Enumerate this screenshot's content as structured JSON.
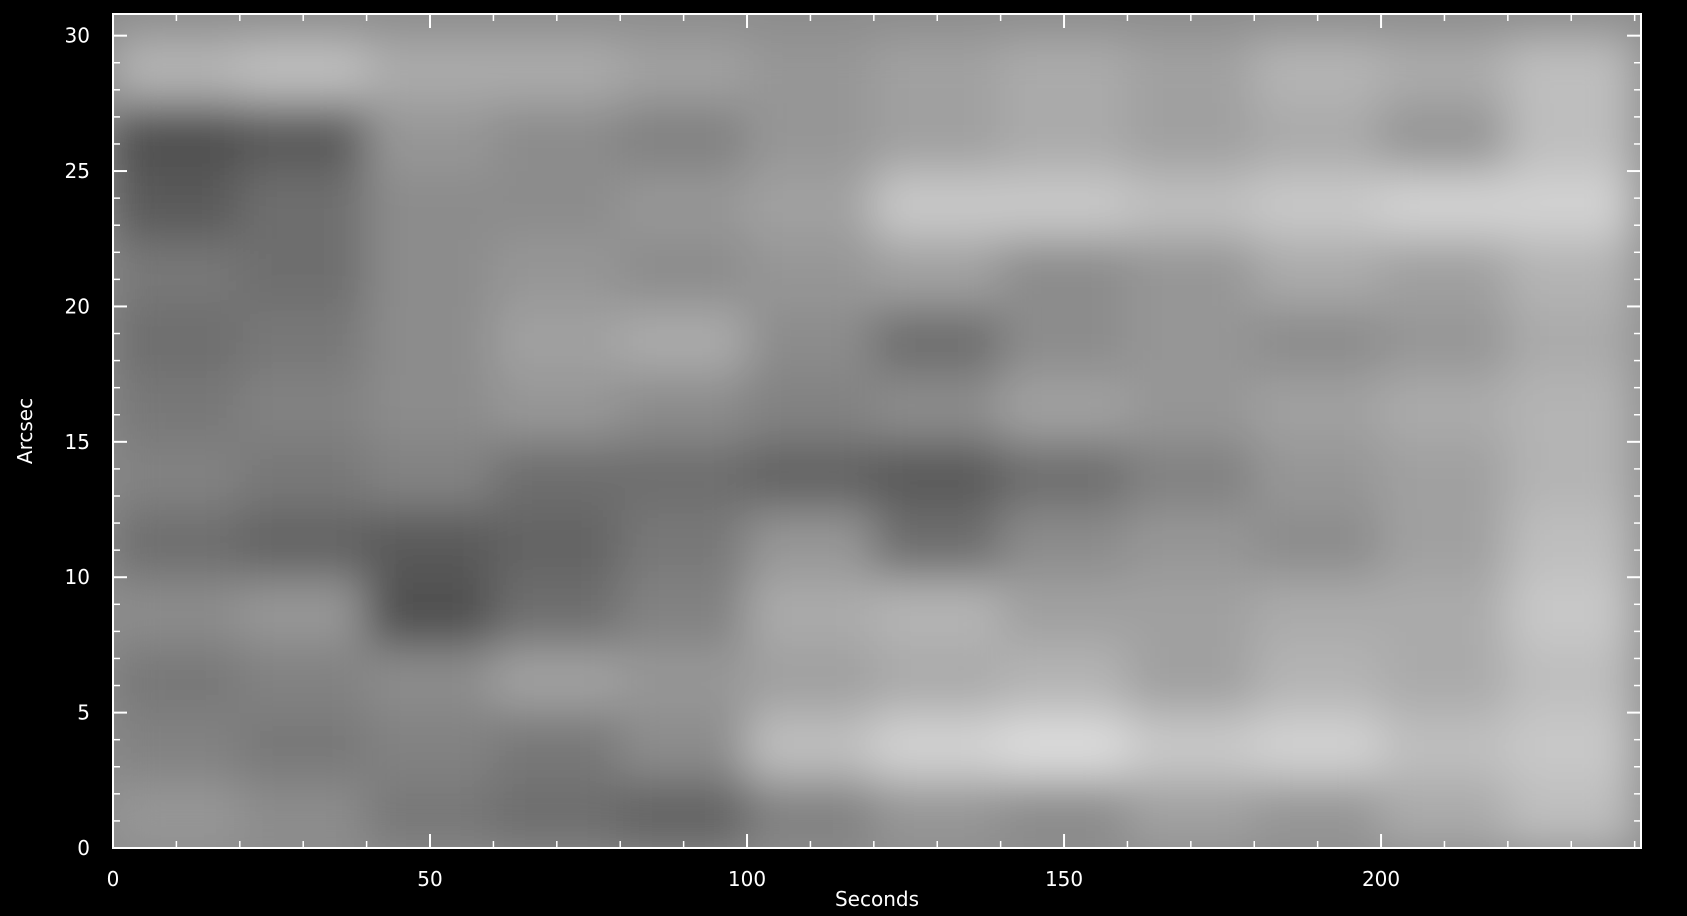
{
  "chart_data": {
    "type": "heatmap",
    "xlabel": "Seconds",
    "ylabel": "Arcsec",
    "xlim": [
      0,
      241
    ],
    "ylim": [
      0,
      30.8
    ],
    "xticks": [
      0,
      50,
      100,
      150,
      200
    ],
    "yticks": [
      0,
      5,
      10,
      15,
      20,
      25,
      30
    ],
    "xminorticks": [
      10,
      20,
      30,
      40,
      60,
      70,
      80,
      90,
      110,
      120,
      130,
      140,
      160,
      170,
      180,
      190,
      210,
      220,
      230,
      240
    ],
    "yminorticks": [
      1,
      2,
      3,
      4,
      6,
      7,
      8,
      9,
      11,
      12,
      13,
      14,
      16,
      17,
      18,
      19,
      21,
      22,
      23,
      24,
      26,
      27,
      28,
      29
    ],
    "colormap": "gray",
    "xbins": [
      0,
      20,
      40,
      60,
      80,
      100,
      120,
      140,
      160,
      180,
      200,
      220,
      240
    ],
    "ybins": [
      0,
      2.5,
      5,
      7.5,
      10,
      12.5,
      15,
      17.5,
      20,
      22.5,
      25,
      27.5,
      30
    ],
    "z": [
      [
        150,
        140,
        120,
        110,
        100,
        130,
        150,
        140,
        160,
        150,
        170,
        190
      ],
      [
        130,
        120,
        130,
        120,
        140,
        190,
        210,
        220,
        200,
        210,
        190,
        200
      ],
      [
        120,
        130,
        140,
        160,
        150,
        160,
        170,
        180,
        160,
        180,
        170,
        190
      ],
      [
        140,
        150,
        80,
        110,
        130,
        170,
        180,
        160,
        160,
        170,
        170,
        200
      ],
      [
        110,
        100,
        90,
        100,
        120,
        150,
        110,
        140,
        150,
        140,
        160,
        190
      ],
      [
        130,
        120,
        130,
        110,
        110,
        100,
        90,
        110,
        130,
        150,
        160,
        180
      ],
      [
        120,
        130,
        140,
        150,
        140,
        130,
        140,
        160,
        150,
        160,
        170,
        180
      ],
      [
        110,
        120,
        140,
        160,
        170,
        140,
        110,
        140,
        150,
        140,
        150,
        170
      ],
      [
        120,
        110,
        140,
        150,
        140,
        150,
        160,
        140,
        150,
        170,
        160,
        180
      ],
      [
        90,
        110,
        140,
        140,
        150,
        160,
        200,
        200,
        190,
        200,
        210,
        210
      ],
      [
        80,
        90,
        150,
        140,
        130,
        150,
        160,
        170,
        160,
        170,
        150,
        190
      ],
      [
        180,
        190,
        170,
        170,
        160,
        150,
        160,
        170,
        160,
        180,
        170,
        190
      ]
    ]
  }
}
